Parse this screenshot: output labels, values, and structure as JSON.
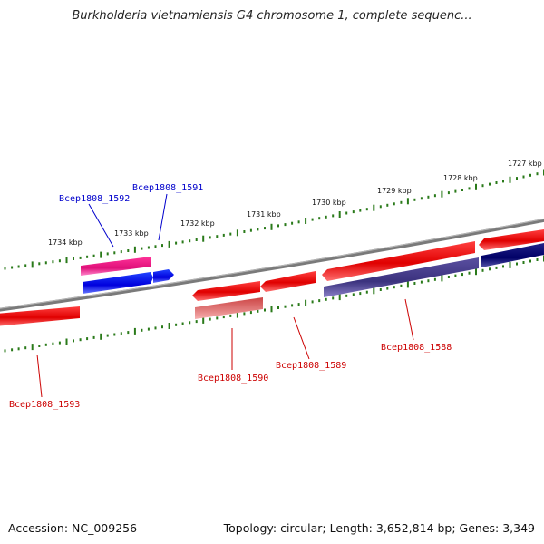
{
  "title": "Burkholderia vietnamiensis G4 chromosome 1, complete sequenc...",
  "footer": {
    "accession": "Accession: NC_009256",
    "summary": "Topology: circular; Length: 3,652,814 bp; Genes: 3,349"
  },
  "scale_ticks": [
    "1727 kbp",
    "1728 kbp",
    "1729 kbp",
    "1730 kbp",
    "1731 kbp",
    "1732 kbp",
    "1733 kbp",
    "1734 kbp"
  ],
  "gene_labels": [
    {
      "name": "Bcep1808_1592",
      "color": "#0000cc"
    },
    {
      "name": "Bcep1808_1591",
      "color": "#0000cc"
    },
    {
      "name": "Bcep1808_1590",
      "color": "#cc0000"
    },
    {
      "name": "Bcep1808_1589",
      "color": "#cc0000"
    },
    {
      "name": "Bcep1808_1588",
      "color": "#cc0000"
    },
    {
      "name": "Bcep1808_1593",
      "color": "#cc0000"
    }
  ],
  "colors": {
    "backbone": "#808080",
    "tick": "#2a7a1a",
    "gene_red": "#ee1111",
    "gene_pink": "#ee2288",
    "gene_blue": "#1122ee",
    "gene_navy": "#111177",
    "gene_slate": "#4a3f8f",
    "gene_salmon": "#dd6666"
  }
}
